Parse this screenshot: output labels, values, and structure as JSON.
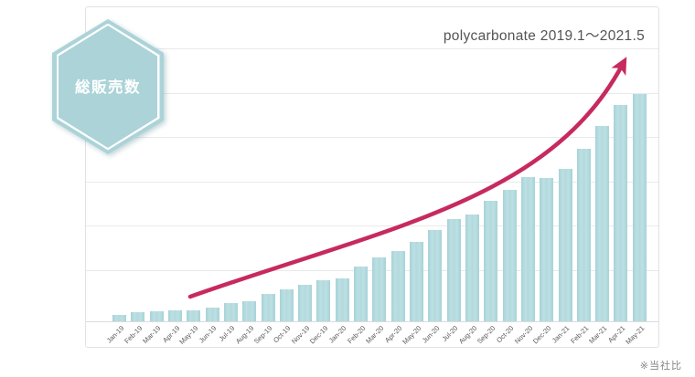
{
  "badge": {
    "label": "総販売数"
  },
  "header": {
    "title": "polycarbonate 2019.1～2021.5"
  },
  "footnote": "※当社比",
  "colors": {
    "bar": "#b3dadd",
    "hexagon": "#abd3d8",
    "arrow": "#c62a5f",
    "gridline": "#e9e9e9",
    "frame_border": "#e2e2e2",
    "title_text": "#545454",
    "axis_text": "#595959",
    "footnote_text": "#858585"
  },
  "chart_data": {
    "type": "bar",
    "title": "polycarbonate 2019.1～2021.5",
    "categories": [
      "Jan-19",
      "Feb-19",
      "Mar-19",
      "Apr-19",
      "May-19",
      "Jun-19",
      "Jul-19",
      "Aug-19",
      "Sep-19",
      "Oct-19",
      "Nov-19",
      "Dec-19",
      "Jan-20",
      "Feb-20",
      "Mar-20",
      "Apr-20",
      "May-20",
      "Jun-20",
      "Jul-20",
      "Aug-20",
      "Sep-20",
      "Oct-20",
      "Nov-20",
      "Dec-20",
      "Jan-21",
      "Feb-21",
      "Mar-21",
      "Apr-21",
      "May-21"
    ],
    "values": [
      3,
      4,
      4.5,
      5,
      5,
      6,
      8,
      9,
      12,
      14,
      16,
      18,
      19,
      24,
      28,
      31,
      35,
      40,
      45,
      47,
      53,
      58,
      63.5,
      63,
      67,
      76,
      86,
      95,
      100
    ],
    "xlabel": "",
    "ylabel": "",
    "ylim": [
      0,
      120
    ],
    "units": "relative index (no numeric y-axis labels shown; max bar = 100)",
    "grid": "horizontal gridlines only, 6 lines",
    "legend": "none",
    "annotations": [
      {
        "type": "curved-arrow",
        "meaning": "accelerating upward growth trend over the bars",
        "color": "#c62a5f"
      },
      {
        "type": "hexagon-badge",
        "text": "総販売数"
      },
      {
        "type": "footnote",
        "text": "※当社比"
      }
    ]
  }
}
